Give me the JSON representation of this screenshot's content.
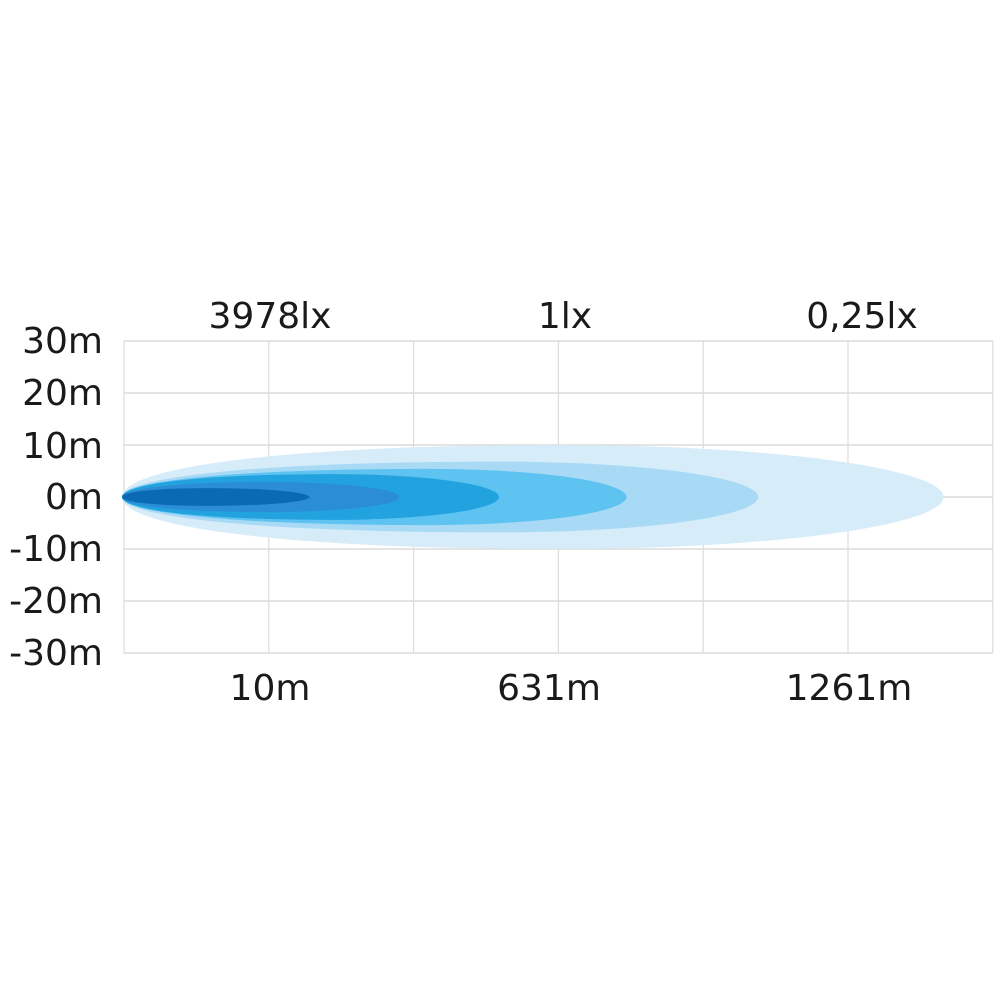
{
  "chart_data": {
    "type": "area",
    "title": "",
    "top_labels": [
      "3978lx",
      "1lx",
      "0,25lx"
    ],
    "bottom_labels": [
      "10m",
      "631m",
      "1261m"
    ],
    "y_ticks": [
      "30m",
      "20m",
      "10m",
      "0m",
      "-10m",
      "-20m",
      "-30m"
    ],
    "y_values": [
      30,
      20,
      10,
      0,
      -10,
      -20,
      -30
    ],
    "ylim": [
      -30,
      30
    ],
    "x_grid_divisions": 6,
    "grid": true,
    "beams": [
      {
        "half_width_m": 10,
        "peak_div": 3.0,
        "reach_div": 5.66,
        "color": "#d6ecf9"
      },
      {
        "half_width_m": 6.8,
        "peak_div": 2.6,
        "reach_div": 4.38,
        "color": "#a8daf6"
      },
      {
        "half_width_m": 5.4,
        "peak_div": 2.1,
        "reach_div": 3.47,
        "color": "#5fc3f1"
      },
      {
        "half_width_m": 4.4,
        "peak_div": 1.45,
        "reach_div": 2.59,
        "color": "#22a3df"
      },
      {
        "half_width_m": 2.9,
        "peak_div": 1.0,
        "reach_div": 1.9,
        "color": "#2a8dd5"
      },
      {
        "half_width_m": 1.7,
        "peak_div": 0.6,
        "reach_div": 1.28,
        "color": "#0b6ab4"
      }
    ]
  }
}
